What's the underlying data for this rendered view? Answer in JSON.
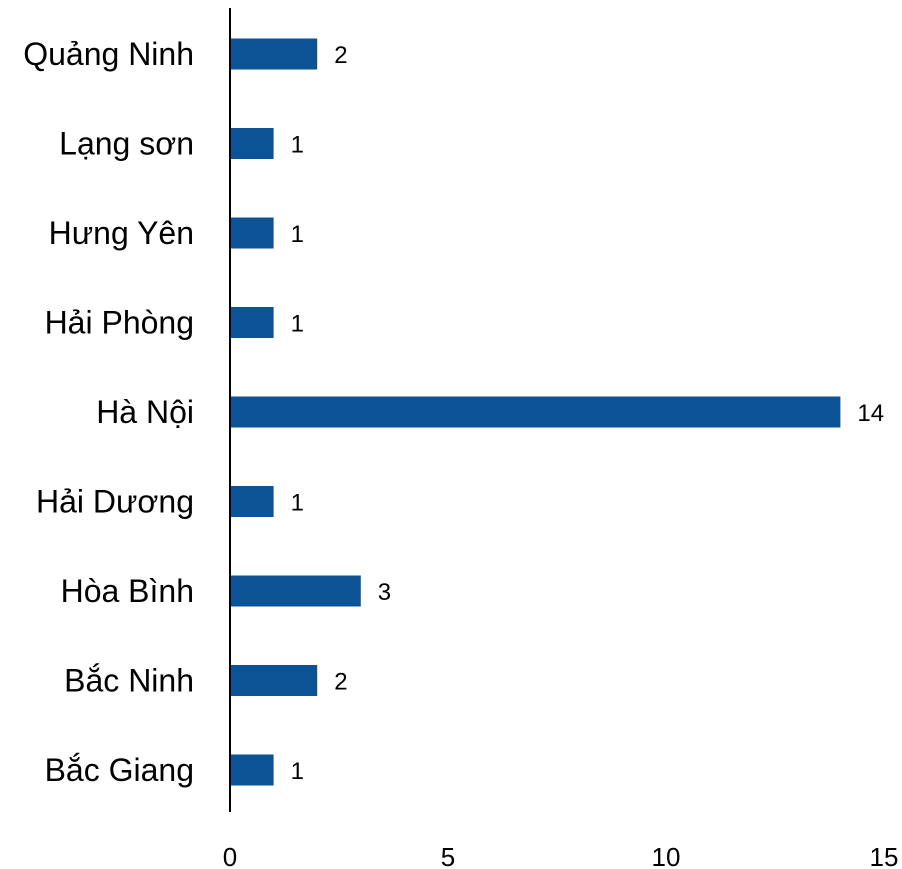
{
  "chart_data": {
    "type": "bar",
    "orientation": "horizontal",
    "categories": [
      "Quảng Ninh",
      "Lạng sơn",
      "Hưng Yên",
      "Hải Phòng",
      "Hà Nội",
      "Hải Dương",
      "Hòa Bình",
      "Bắc Ninh",
      "Bắc Giang"
    ],
    "values": [
      2,
      1,
      1,
      1,
      14,
      1,
      3,
      2,
      1
    ],
    "data_labels": [
      "2",
      "1",
      "1",
      "1",
      "14",
      "1",
      "3",
      "2",
      "1"
    ],
    "xlim": [
      0,
      15
    ],
    "x_ticks": [
      "0",
      "5",
      "10",
      "15"
    ],
    "title": "",
    "xlabel": "",
    "ylabel": "",
    "grid": false,
    "legend": "none",
    "bar_color": "#0b5394",
    "axis_color": "#000000"
  }
}
